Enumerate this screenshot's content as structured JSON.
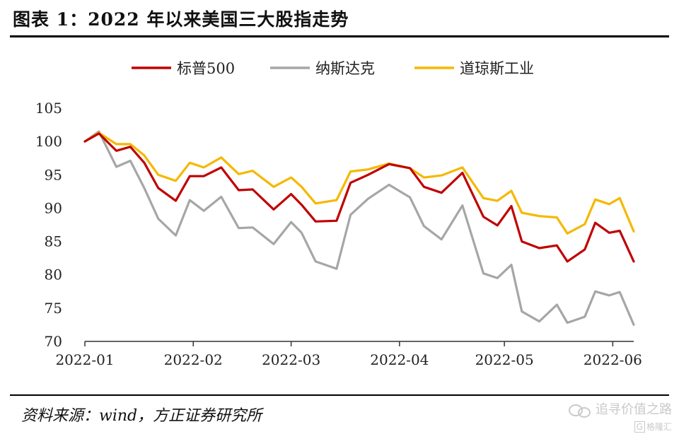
{
  "header": {
    "title": "图表 1：2022 年以来美国三大股指走势"
  },
  "footer": {
    "source": "资料来源：wind，方正证券研究所",
    "watermark_main": "追寻价值之路",
    "watermark_sub": "格隆汇"
  },
  "chart_data": {
    "type": "line",
    "title": "",
    "xlabel": "",
    "ylabel": "",
    "ylim": [
      70,
      105
    ],
    "yticks": [
      70,
      75,
      80,
      85,
      90,
      95,
      100,
      105
    ],
    "xlim": [
      "2022-01-01",
      "2022-06-07"
    ],
    "xticks": [
      "2022-01",
      "2022-02",
      "2022-03",
      "2022-04",
      "2022-05",
      "2022-06"
    ],
    "grid": false,
    "legend_position": "top",
    "dates": [
      "2022-01-01",
      "2022-01-05",
      "2022-01-10",
      "2022-01-14",
      "2022-01-18",
      "2022-01-22",
      "2022-01-27",
      "2022-01-31",
      "2022-02-04",
      "2022-02-09",
      "2022-02-14",
      "2022-02-18",
      "2022-02-24",
      "2022-03-01",
      "2022-03-04",
      "2022-03-08",
      "2022-03-14",
      "2022-03-18",
      "2022-03-23",
      "2022-03-29",
      "2022-04-04",
      "2022-04-08",
      "2022-04-13",
      "2022-04-19",
      "2022-04-25",
      "2022-04-29",
      "2022-05-03",
      "2022-05-06",
      "2022-05-11",
      "2022-05-16",
      "2022-05-19",
      "2022-05-24",
      "2022-05-27",
      "2022-05-31",
      "2022-06-03",
      "2022-06-07"
    ],
    "series": [
      {
        "name": "标普500",
        "color": "#c00000",
        "values": [
          100.0,
          101.2,
          98.6,
          99.2,
          96.8,
          93.0,
          91.1,
          94.8,
          94.8,
          96.1,
          92.7,
          92.8,
          89.8,
          92.1,
          90.5,
          88.0,
          88.1,
          93.8,
          95.0,
          96.6,
          96.0,
          93.2,
          92.3,
          95.3,
          88.7,
          87.4,
          90.3,
          85.0,
          84.0,
          84.4,
          82.0,
          83.8,
          87.8,
          86.3,
          86.6,
          82.0
        ]
      },
      {
        "name": "纳斯达克",
        "color": "#a6a6a6",
        "values": [
          100.0,
          101.5,
          96.2,
          97.1,
          93.0,
          88.4,
          85.9,
          91.2,
          89.6,
          91.7,
          87.0,
          87.1,
          84.6,
          87.9,
          86.3,
          82.0,
          80.9,
          89.0,
          91.4,
          93.5,
          91.6,
          87.3,
          85.3,
          90.4,
          80.2,
          79.5,
          81.5,
          74.5,
          73.0,
          75.5,
          72.8,
          73.7,
          77.5,
          76.9,
          77.4,
          72.5
        ]
      },
      {
        "name": "道琼斯工业",
        "color": "#f5b800",
        "values": [
          100.0,
          101.3,
          99.6,
          99.6,
          97.9,
          95.0,
          94.1,
          96.8,
          96.1,
          97.6,
          95.1,
          95.6,
          93.2,
          94.6,
          93.2,
          90.7,
          91.2,
          95.5,
          95.8,
          96.7,
          96.0,
          94.6,
          94.9,
          96.1,
          91.5,
          91.1,
          92.6,
          89.3,
          88.8,
          88.6,
          86.2,
          87.6,
          91.3,
          90.6,
          91.5,
          86.5
        ]
      }
    ]
  }
}
